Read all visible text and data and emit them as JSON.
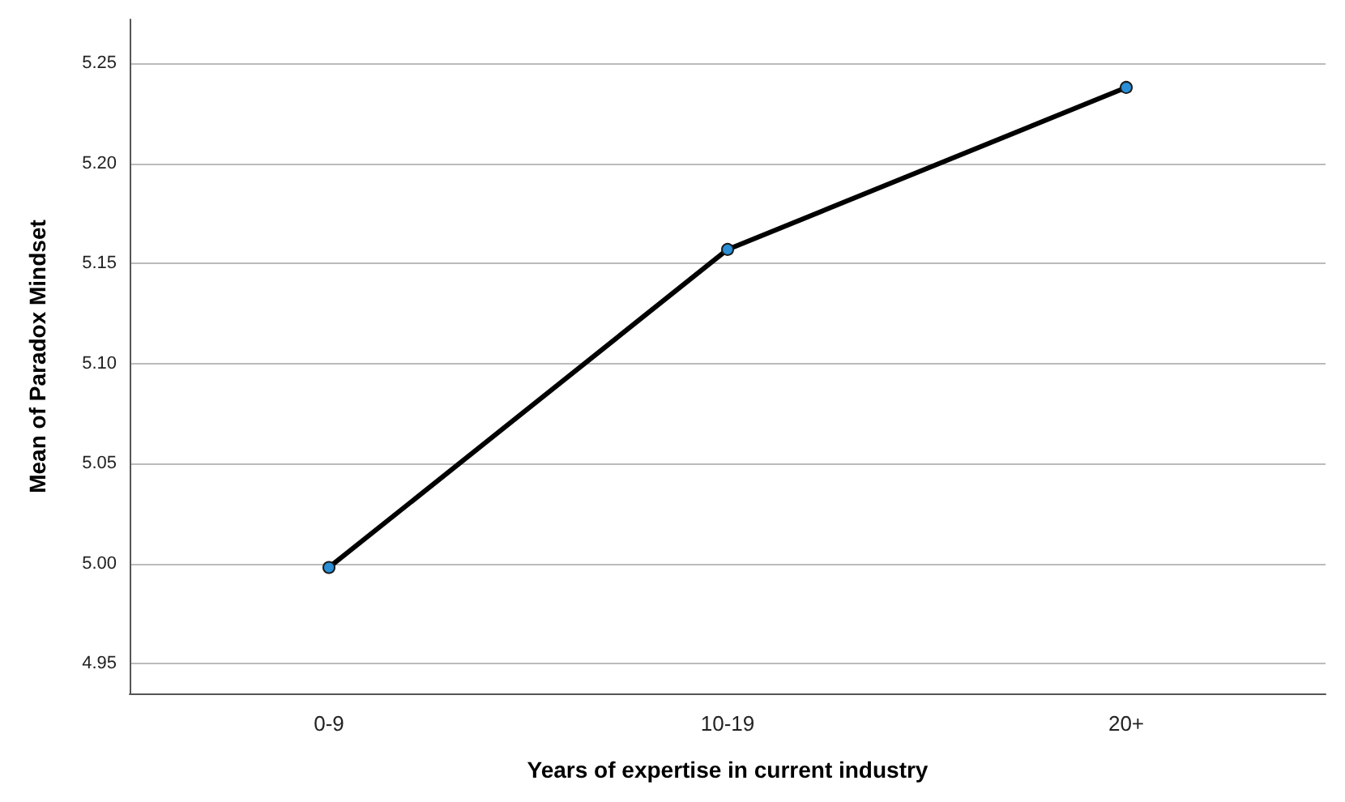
{
  "chart_data": {
    "type": "line",
    "xlabel": "Years of expertise in current industry",
    "ylabel": "Mean of Paradox Mindset",
    "categories": [
      "0-9",
      "10-19",
      "20+"
    ],
    "series": [
      {
        "color": "#000000",
        "values": [
          4.998,
          5.157,
          5.238
        ]
      }
    ],
    "ylim": [
      4.935,
      5.272
    ],
    "yticks": [
      4.95,
      {
        "value": 5.0,
        "label": "5.00"
      },
      5.05,
      {
        "value": 5.1,
        "label": "5.10"
      },
      5.15,
      {
        "value": 5.2,
        "label": "5.20"
      },
      5.25
    ],
    "grid": "y",
    "marker": "circle",
    "line_style": "solid"
  }
}
